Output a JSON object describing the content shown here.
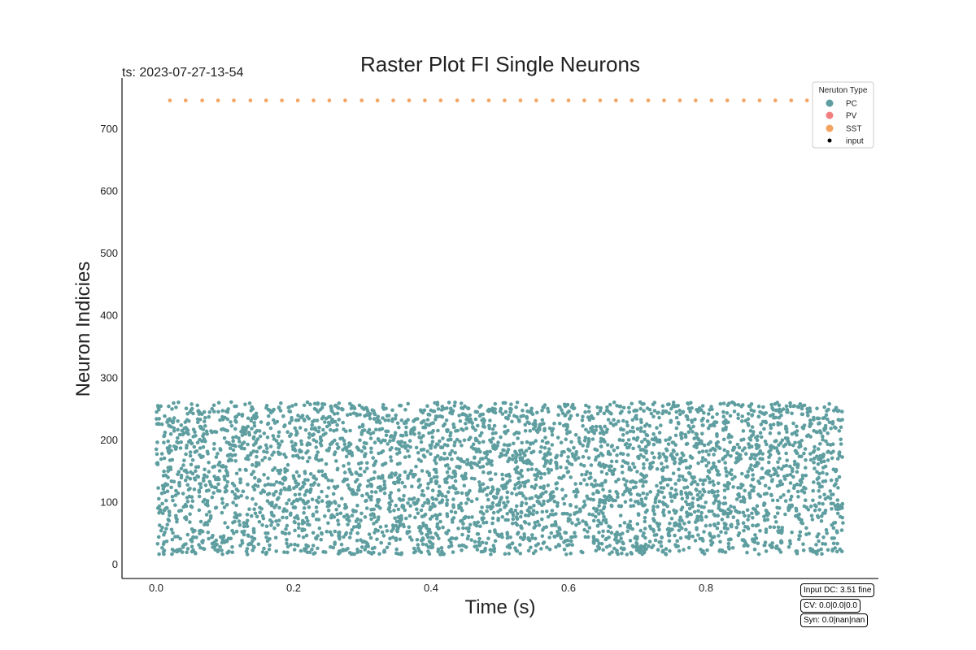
{
  "chart_data": {
    "type": "scatter",
    "title": "Raster Plot FI Single Neurons",
    "timestamp_label": "ts: 2023-07-27-13-54",
    "xlabel": "Time (s)",
    "ylabel": "Neuron Indicies",
    "xlim": [
      -0.05,
      1.05
    ],
    "ylim": [
      -25,
      785
    ],
    "xticks": [
      0.0,
      0.2,
      0.4,
      0.6,
      0.8
    ],
    "xtick_labels": [
      "0.0",
      "0.2",
      "0.4",
      "0.6",
      "0.8"
    ],
    "yticks": [
      0,
      100,
      200,
      300,
      400,
      500,
      600,
      700
    ],
    "ytick_labels": [
      "0",
      "100",
      "200",
      "300",
      "400",
      "500",
      "600",
      "700"
    ],
    "grid": false,
    "legend": {
      "title": "Neruton Type",
      "placement": "top-right",
      "entries": [
        {
          "label": "PC",
          "color": "#5f9ea0"
        },
        {
          "label": "PV",
          "color": "#f08080"
        },
        {
          "label": "SST",
          "color": "#f4a460"
        },
        {
          "label": "input",
          "color": "#000000"
        }
      ]
    },
    "series": [
      {
        "name": "PC",
        "color": "#5f9ea0",
        "description": "dense random spikes from neurons 15 to 260 across time 0.0 to 1.0 s",
        "neuron_range": [
          15,
          260
        ],
        "time_range": [
          0.0,
          1.0
        ],
        "spike_count": 4200
      },
      {
        "name": "SST",
        "color": "#f4a460",
        "neuron_index": 745,
        "times": [
          0.02,
          0.043,
          0.067,
          0.09,
          0.113,
          0.137,
          0.16,
          0.183,
          0.206,
          0.229,
          0.252,
          0.275,
          0.299,
          0.322,
          0.345,
          0.368,
          0.391,
          0.414,
          0.438,
          0.461,
          0.484,
          0.507,
          0.53,
          0.553,
          0.577,
          0.6,
          0.623,
          0.646,
          0.669,
          0.692,
          0.716,
          0.739,
          0.762,
          0.785,
          0.808,
          0.831,
          0.855,
          0.878,
          0.901,
          0.924,
          0.947,
          0.97,
          0.994
        ]
      }
    ],
    "annotations": [
      "Input DC: 3.51 fine",
      "CV: 0.0|0.0|0.0",
      "Syn: 0.0|nan|nan"
    ]
  }
}
